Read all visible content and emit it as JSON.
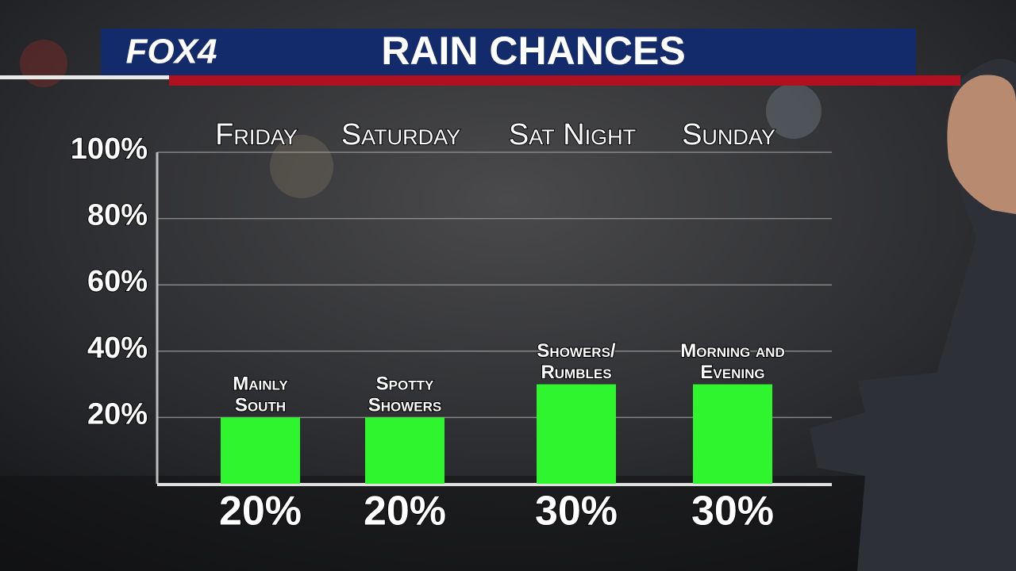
{
  "chart_data": {
    "type": "bar",
    "brand": "FOX4",
    "title": "RAIN CHANCES",
    "categories": [
      "Friday",
      "Saturday",
      "Sat Night",
      "Sunday"
    ],
    "values": [
      20,
      20,
      30,
      30
    ],
    "value_labels": [
      "20%",
      "20%",
      "30%",
      "30%"
    ],
    "annotations": [
      [
        "Mainly",
        "South"
      ],
      [
        "Spotty",
        "Showers"
      ],
      [
        "Showers/",
        "Rumbles"
      ],
      [
        "Morning and",
        "Evening"
      ]
    ],
    "color": "#2ef52e",
    "ylim": [
      0,
      100
    ],
    "yticks": [
      {
        "value": 20,
        "label": "20%"
      },
      {
        "value": 40,
        "label": "40%"
      },
      {
        "value": 60,
        "label": "60%"
      },
      {
        "value": 80,
        "label": "80%"
      },
      {
        "value": 100,
        "label": "100%"
      }
    ],
    "grid": true
  }
}
